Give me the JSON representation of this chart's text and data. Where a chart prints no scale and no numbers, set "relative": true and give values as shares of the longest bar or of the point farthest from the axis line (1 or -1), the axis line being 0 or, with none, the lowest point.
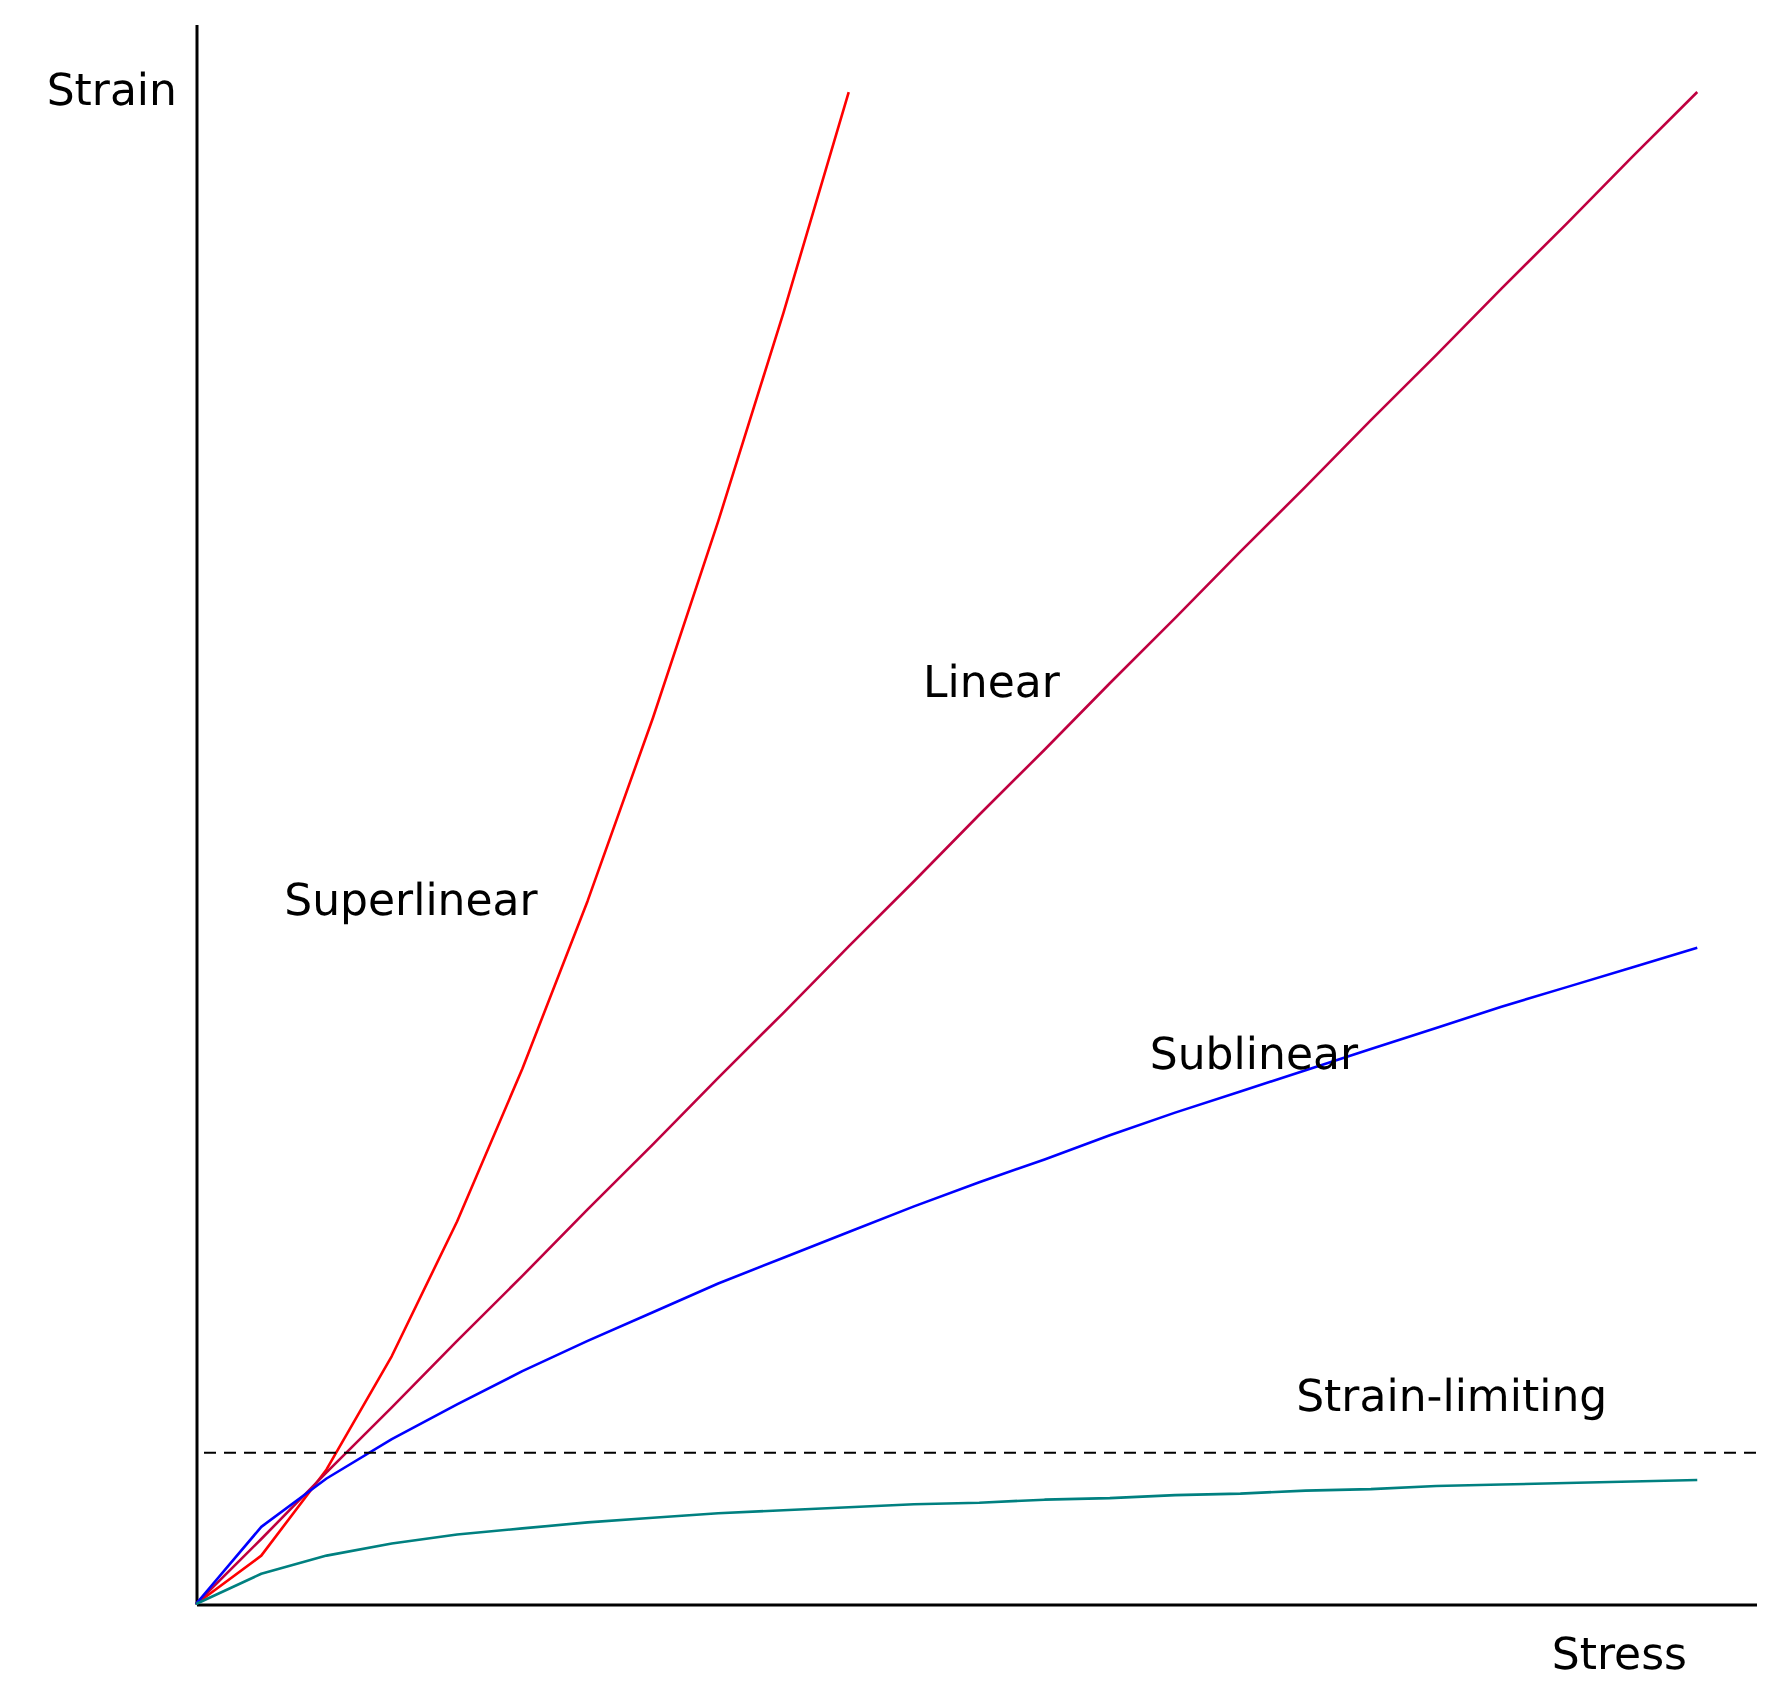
{
  "chart_data": {
    "type": "line",
    "relative": true,
    "xlabel": "Stress",
    "ylabel": "Strain",
    "tick_labels": false,
    "grid": false,
    "legend": false,
    "marker": "none",
    "line_style": "solid",
    "categories": [
      null,
      null,
      null,
      null,
      null,
      null,
      null,
      null,
      null,
      null,
      null,
      null,
      null,
      null,
      null,
      null,
      null,
      null,
      null,
      null,
      null,
      null,
      null,
      null
    ],
    "series": [
      {
        "name": "Superlinear",
        "color": "#ff0000",
        "values": [
          0,
          0.032,
          0.089,
          0.164,
          0.253,
          0.354,
          0.465,
          0.586,
          0.716,
          0.854,
          1,
          null,
          null,
          null,
          null,
          null,
          null,
          null,
          null,
          null,
          null,
          null,
          null,
          null
        ]
      },
      {
        "name": "Linear",
        "color": "#bf0040",
        "values": [
          0,
          0.043,
          0.087,
          0.13,
          0.174,
          0.217,
          0.261,
          0.304,
          0.348,
          0.391,
          0.435,
          0.478,
          0.522,
          0.565,
          0.609,
          0.652,
          0.696,
          0.739,
          0.783,
          0.826,
          0.87,
          0.913,
          0.957,
          1
        ]
      },
      {
        "name": "Sublinear",
        "color": "#0000ff",
        "values": [
          0,
          0.051,
          0.083,
          0.109,
          0.132,
          0.154,
          0.174,
          0.193,
          0.212,
          0.229,
          0.246,
          0.263,
          0.279,
          0.294,
          0.31,
          0.325,
          0.339,
          0.353,
          0.367,
          0.381,
          0.395,
          0.408,
          0.421,
          0.434
        ]
      },
      {
        "color": "#008080",
        "values": [
          0,
          0.02,
          0.032,
          0.04,
          0.046,
          0.05,
          0.054,
          0.057,
          0.06,
          0.062,
          0.064,
          0.066,
          0.067,
          0.069,
          0.07,
          0.072,
          0.073,
          0.075,
          0.076,
          0.078,
          0.079,
          0.08,
          0.081,
          0.082
        ]
      }
    ],
    "ref_lines": [
      {
        "axis": "y",
        "value": 0.1,
        "label": "Strain-limiting",
        "color": "#000000",
        "line_style": "dashed"
      }
    ]
  }
}
